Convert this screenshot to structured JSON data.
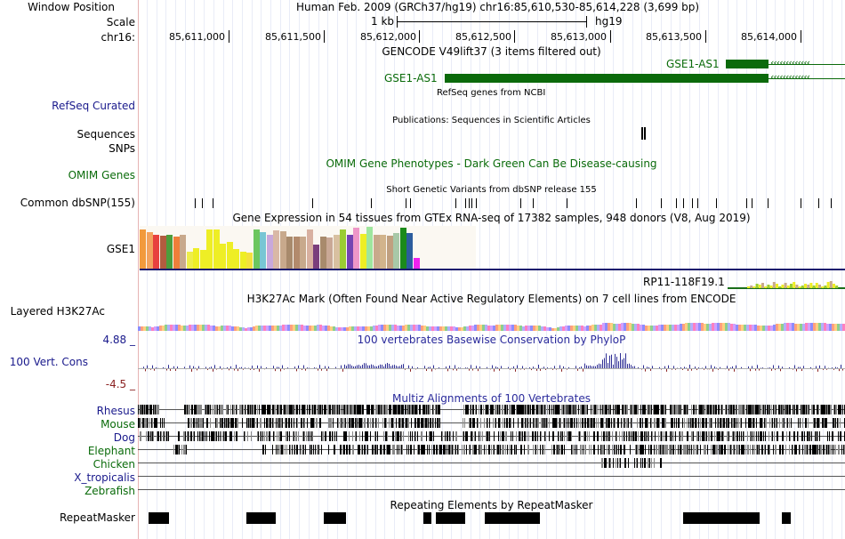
{
  "header": {
    "window_position_label": "Window Position",
    "scale_label": "Scale",
    "chrom_label": "chr16:",
    "assembly_text": "Human Feb. 2009 (GRCh37/hg19)   chr16:85,610,530-85,614,228 (3,699 bp)",
    "scale_text": "1 kb",
    "scale_assembly": "hg19",
    "ruler_ticks": [
      "85,611,000",
      "85,611,500",
      "85,612,000",
      "85,612,500",
      "85,613,000",
      "85,613,500",
      "85,614,000"
    ]
  },
  "tracks": {
    "gencode_title": "GENCODE V49lift37 (3 items filtered out)",
    "gencode_genes": [
      "GSE1-AS1",
      "GSE1-AS1"
    ],
    "refseq_title": "RefSeq genes from NCBI",
    "refseq_label": "RefSeq Curated",
    "publications_title": "Publications: Sequences in Scientific Articles",
    "sequences_label": "Sequences",
    "snps_label": "SNPs",
    "omim_label": "OMIM Genes",
    "omim_title": "OMIM Gene Phenotypes - Dark Green Can Be Disease-causing",
    "dbsnp_title": "Short Genetic Variants from dbSNP release 155",
    "dbsnp_label": "Common dbSNP(155)",
    "gtex_title": "Gene Expression in 54 tissues from GTEx RNA-seq of 17382 samples, 948 donors (V8, Aug 2019)",
    "gtex_gene_label": "GSE1",
    "gtex_gene2": "RP11-118F19.1",
    "h3k27ac_title": "H3K27Ac Mark (Often Found Near Active Regulatory Elements) on 7 cell lines from ENCODE",
    "h3k27ac_label": "Layered H3K27Ac",
    "phylop_title": "100 vertebrates Basewise Conservation by PhyloP",
    "phylop_label": "100 Vert. Cons",
    "phylop_max": "4.88 _",
    "phylop_min": "-4.5 _",
    "multiz_title": "Multiz Alignments of 100 Vertebrates",
    "species": [
      "Rhesus",
      "Mouse",
      "Dog",
      "Elephant",
      "Chicken",
      "X_tropicalis",
      "Zebrafish"
    ],
    "repeat_title": "Repeating Elements by RepeatMasker",
    "repeat_label": "RepeatMasker"
  },
  "gtex_bars": [
    {
      "color": "#f29a3c",
      "level": 0.92
    },
    {
      "color": "#f2a25e",
      "level": 0.86
    },
    {
      "color": "#e7413f",
      "level": 0.8
    },
    {
      "color": "#b25c3f",
      "level": 0.78
    },
    {
      "color": "#4d9d3c",
      "level": 0.8
    },
    {
      "color": "#ee7f3a",
      "level": 0.74
    },
    {
      "color": "#c8a98c",
      "level": 0.8
    },
    {
      "color": "#eeee4a",
      "level": 0.4
    },
    {
      "color": "#eeee25",
      "level": 0.48
    },
    {
      "color": "#eeee25",
      "level": 0.44
    },
    {
      "color": "#eeee25",
      "level": 0.92
    },
    {
      "color": "#eeee25",
      "level": 0.92
    },
    {
      "color": "#eeee25",
      "level": 0.58
    },
    {
      "color": "#eeee25",
      "level": 0.62
    },
    {
      "color": "#eeee25",
      "level": 0.46
    },
    {
      "color": "#eeee25",
      "level": 0.4
    },
    {
      "color": "#f4e13c",
      "level": 0.38
    },
    {
      "color": "#6cc65f",
      "level": 0.92
    },
    {
      "color": "#78c6d4",
      "level": 0.86
    },
    {
      "color": "#c8a8dc",
      "level": 0.8
    },
    {
      "color": "#d9b8a6",
      "level": 0.9
    },
    {
      "color": "#c8a98c",
      "level": 0.88
    },
    {
      "color": "#a88a6c",
      "level": 0.76
    },
    {
      "color": "#b28a6c",
      "level": 0.76
    },
    {
      "color": "#c8a98c",
      "level": 0.76
    },
    {
      "color": "#d8b0a0",
      "level": 0.92
    },
    {
      "color": "#7a3f7c",
      "level": 0.56
    },
    {
      "color": "#a88a6c",
      "level": 0.76
    },
    {
      "color": "#c9a896",
      "level": 0.72
    },
    {
      "color": "#d8c0a0",
      "level": 0.8
    },
    {
      "color": "#9acd32",
      "level": 0.92
    },
    {
      "color": "#7444b2",
      "level": 0.8
    },
    {
      "color": "#ee96c8",
      "level": 0.96
    },
    {
      "color": "#eeee25",
      "level": 0.82
    },
    {
      "color": "#9ee69e",
      "level": 0.98
    },
    {
      "color": "#c8a98c",
      "level": 0.8
    },
    {
      "color": "#d2b48c",
      "level": 0.8
    },
    {
      "color": "#c0a080",
      "level": 0.78
    },
    {
      "color": "#a8c8a8",
      "level": 0.84
    },
    {
      "color": "#1b8a1b",
      "level": 0.96
    },
    {
      "color": "#2c5d9e",
      "level": 0.84
    },
    {
      "color": "#ee22ee",
      "level": 0.26
    }
  ],
  "colors": {
    "gene_green": "#0b6a0b",
    "label_blue": "#1a1a8c",
    "phylop_pos": "#2d2d94",
    "phylop_neg": "#8b2222",
    "divider": "#e7b3b3"
  }
}
